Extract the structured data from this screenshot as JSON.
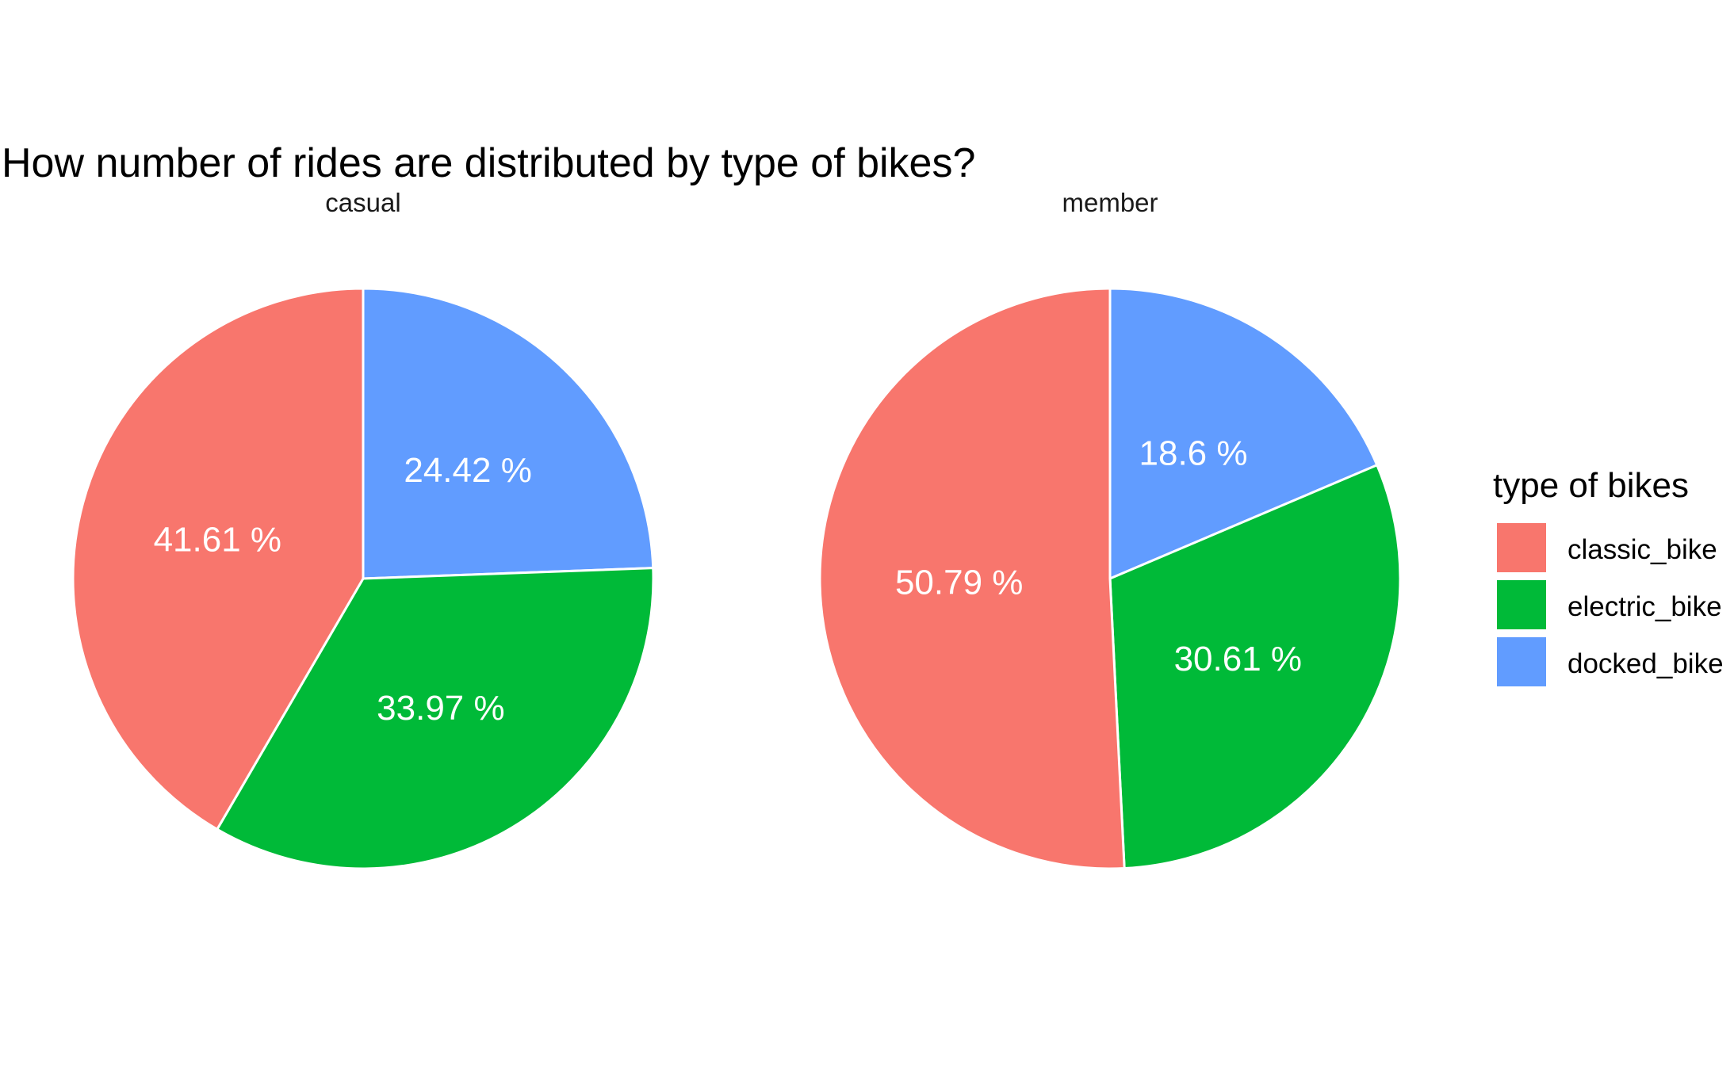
{
  "chart_data": {
    "type": "pie",
    "title": "How number of rides are distributed by type of bikes?",
    "legend": {
      "title": "type of bikes",
      "position": "right",
      "entries": [
        {
          "label": "classic_bike",
          "color": "#F8766D"
        },
        {
          "label": "electric_bike",
          "color": "#00BA38"
        },
        {
          "label": "docked_bike",
          "color": "#619CFF"
        }
      ]
    },
    "facets": [
      {
        "name": "casual",
        "slices": [
          {
            "category": "docked_bike",
            "value": 24.42,
            "label": "24.42 %"
          },
          {
            "category": "electric_bike",
            "value": 33.97,
            "label": "33.97 %"
          },
          {
            "category": "classic_bike",
            "value": 41.61,
            "label": "41.61 %"
          }
        ]
      },
      {
        "name": "member",
        "slices": [
          {
            "category": "docked_bike",
            "value": 18.6,
            "label": "18.6 %"
          },
          {
            "category": "electric_bike",
            "value": 30.61,
            "label": "30.61 %"
          },
          {
            "category": "classic_bike",
            "value": 50.79,
            "label": "50.79 %"
          }
        ]
      }
    ]
  }
}
